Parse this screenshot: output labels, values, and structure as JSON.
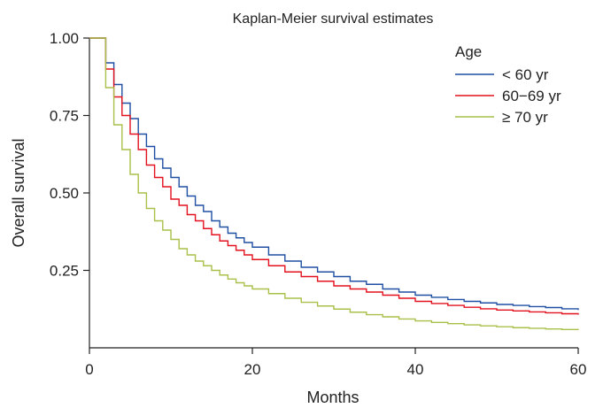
{
  "chart_data": {
    "type": "line",
    "step": true,
    "title": "Kaplan-Meier survival estimates",
    "xlabel": "Months",
    "ylabel": "Overall survival",
    "xlim": [
      0,
      60
    ],
    "ylim": [
      0,
      1
    ],
    "x_ticks": [
      0,
      20,
      40,
      60
    ],
    "x_tick_labels": [
      "0",
      "20",
      "40",
      "60"
    ],
    "y_ticks": [
      0.25,
      0.5,
      0.75,
      1.0
    ],
    "y_tick_labels": [
      "0.25",
      "0.50",
      "0.75",
      "1.00"
    ],
    "grid": false,
    "legend": {
      "title": "Age",
      "position": "top-right"
    },
    "series": [
      {
        "name": "< 60 yr",
        "color": "#1f4fa3",
        "x": [
          0,
          1,
          2,
          3,
          4,
          5,
          6,
          7,
          8,
          9,
          10,
          11,
          12,
          13,
          14,
          15,
          16,
          17,
          18,
          19,
          20,
          22,
          24,
          26,
          28,
          30,
          32,
          34,
          36,
          38,
          40,
          42,
          44,
          46,
          48,
          50,
          52,
          54,
          56,
          58,
          60
        ],
        "y": [
          1.0,
          1.0,
          0.92,
          0.85,
          0.79,
          0.74,
          0.69,
          0.65,
          0.61,
          0.58,
          0.55,
          0.52,
          0.49,
          0.46,
          0.44,
          0.41,
          0.39,
          0.37,
          0.355,
          0.34,
          0.325,
          0.3,
          0.28,
          0.26,
          0.245,
          0.23,
          0.215,
          0.205,
          0.19,
          0.18,
          0.17,
          0.163,
          0.156,
          0.15,
          0.145,
          0.14,
          0.137,
          0.133,
          0.13,
          0.126,
          0.122
        ]
      },
      {
        "name": "60−69 yr",
        "color": "#e3101e",
        "x": [
          0,
          1,
          2,
          3,
          4,
          5,
          6,
          7,
          8,
          9,
          10,
          11,
          12,
          13,
          14,
          15,
          16,
          17,
          18,
          19,
          20,
          22,
          24,
          26,
          28,
          30,
          32,
          34,
          36,
          38,
          40,
          42,
          44,
          46,
          48,
          50,
          52,
          54,
          56,
          58,
          60
        ],
        "y": [
          1.0,
          1.0,
          0.9,
          0.81,
          0.75,
          0.69,
          0.64,
          0.59,
          0.55,
          0.52,
          0.48,
          0.46,
          0.43,
          0.41,
          0.385,
          0.365,
          0.345,
          0.33,
          0.315,
          0.3,
          0.285,
          0.265,
          0.245,
          0.23,
          0.215,
          0.2,
          0.19,
          0.18,
          0.17,
          0.16,
          0.15,
          0.143,
          0.137,
          0.131,
          0.126,
          0.122,
          0.119,
          0.116,
          0.113,
          0.11,
          0.107
        ]
      },
      {
        "name": "≥ 70 yr",
        "color": "#a9c04a",
        "x": [
          0,
          1,
          2,
          3,
          4,
          5,
          6,
          7,
          8,
          9,
          10,
          11,
          12,
          13,
          14,
          15,
          16,
          17,
          18,
          19,
          20,
          22,
          24,
          26,
          28,
          30,
          32,
          34,
          36,
          38,
          40,
          42,
          44,
          46,
          48,
          50,
          52,
          54,
          56,
          58,
          60
        ],
        "y": [
          1.0,
          1.0,
          0.84,
          0.72,
          0.64,
          0.56,
          0.5,
          0.45,
          0.41,
          0.38,
          0.35,
          0.32,
          0.3,
          0.28,
          0.265,
          0.25,
          0.235,
          0.222,
          0.21,
          0.2,
          0.19,
          0.175,
          0.16,
          0.147,
          0.135,
          0.125,
          0.115,
          0.107,
          0.1,
          0.093,
          0.087,
          0.082,
          0.078,
          0.074,
          0.071,
          0.068,
          0.065,
          0.063,
          0.061,
          0.059,
          0.057
        ]
      }
    ]
  }
}
